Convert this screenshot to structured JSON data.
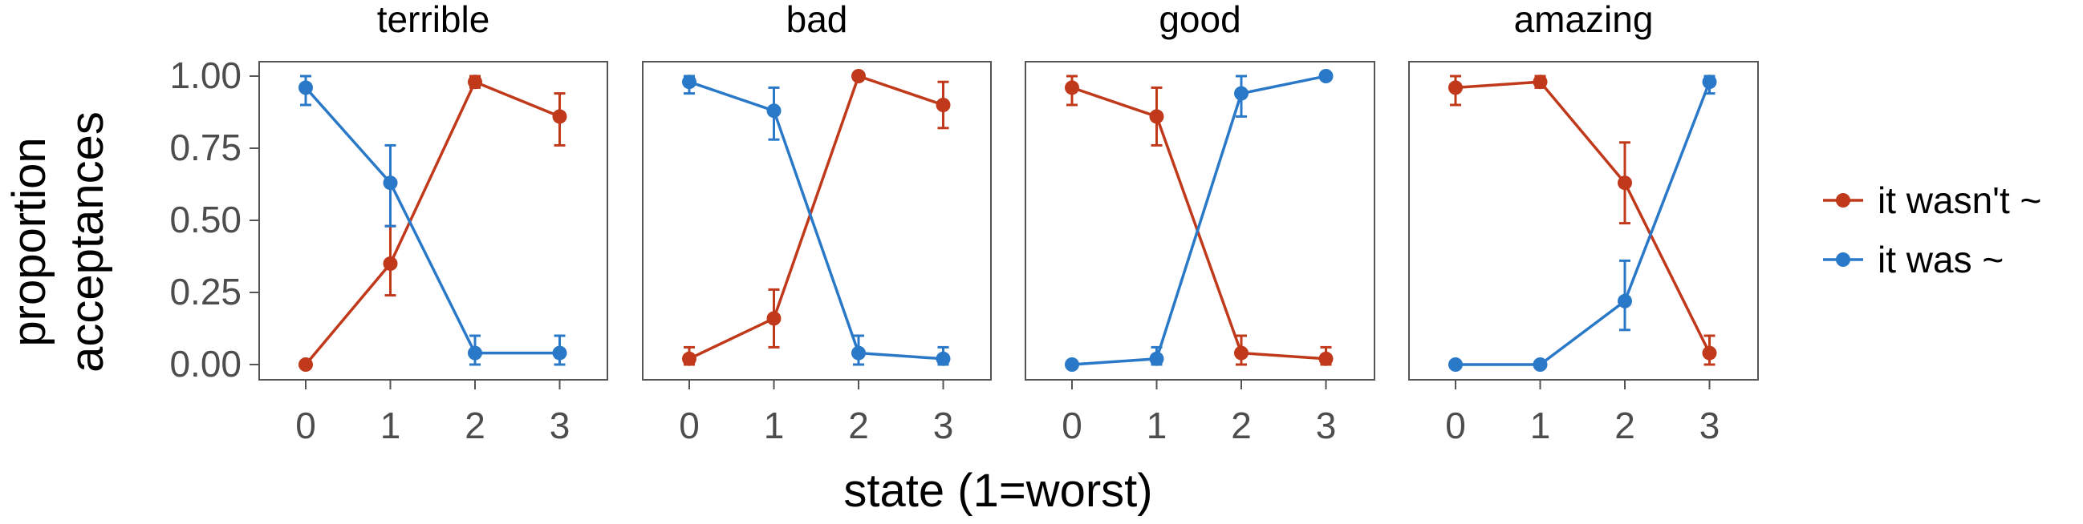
{
  "chart_data": {
    "type": "line",
    "xlabel": "state (1=worst)",
    "ylabel": "proportion acceptances",
    "ylabel_lines": [
      "proportion",
      "acceptances"
    ],
    "x": [
      0,
      1,
      2,
      3
    ],
    "x_tick_labels": [
      "0",
      "1",
      "2",
      "3"
    ],
    "ylim": [
      0,
      1
    ],
    "y_ticks": [
      0,
      0.25,
      0.5,
      0.75,
      1
    ],
    "y_tick_labels": [
      "0.00",
      "0.25",
      "0.50",
      "0.75",
      "1.00"
    ],
    "grid": false,
    "legend_position": "right",
    "colors": {
      "it wasn't ~": "#c0391b",
      "it was ~": "#2a79c8"
    },
    "legend": [
      {
        "name": "it wasn't ~",
        "color": "#c0391b"
      },
      {
        "name": "it was ~",
        "color": "#2a79c8"
      }
    ],
    "panels": [
      {
        "title": "terrible",
        "series": [
          {
            "name": "it wasn't ~",
            "values": [
              0.0,
              0.35,
              0.98,
              0.86
            ],
            "err_low": [
              0.0,
              0.24,
              0.96,
              0.76
            ],
            "err_high": [
              0.0,
              0.48,
              1.0,
              0.94
            ]
          },
          {
            "name": "it was ~",
            "values": [
              0.96,
              0.63,
              0.04,
              0.04
            ],
            "err_low": [
              0.9,
              0.48,
              0.0,
              0.0
            ],
            "err_high": [
              1.0,
              0.76,
              0.1,
              0.1
            ]
          }
        ]
      },
      {
        "title": "bad",
        "series": [
          {
            "name": "it wasn't ~",
            "values": [
              0.02,
              0.16,
              1.0,
              0.9
            ],
            "err_low": [
              0.0,
              0.06,
              1.0,
              0.82
            ],
            "err_high": [
              0.06,
              0.26,
              1.0,
              0.98
            ]
          },
          {
            "name": "it was ~",
            "values": [
              0.98,
              0.88,
              0.04,
              0.02
            ],
            "err_low": [
              0.94,
              0.78,
              0.0,
              0.0
            ],
            "err_high": [
              1.0,
              0.96,
              0.1,
              0.06
            ]
          }
        ]
      },
      {
        "title": "good",
        "series": [
          {
            "name": "it wasn't ~",
            "values": [
              0.96,
              0.86,
              0.04,
              0.02
            ],
            "err_low": [
              0.9,
              0.76,
              0.0,
              0.0
            ],
            "err_high": [
              1.0,
              0.96,
              0.1,
              0.06
            ]
          },
          {
            "name": "it was ~",
            "values": [
              0.0,
              0.02,
              0.94,
              1.0
            ],
            "err_low": [
              0.0,
              0.0,
              0.86,
              1.0
            ],
            "err_high": [
              0.0,
              0.06,
              1.0,
              1.0
            ]
          }
        ]
      },
      {
        "title": "amazing",
        "series": [
          {
            "name": "it wasn't ~",
            "values": [
              0.96,
              0.98,
              0.63,
              0.04
            ],
            "err_low": [
              0.9,
              0.96,
              0.49,
              0.0
            ],
            "err_high": [
              1.0,
              1.0,
              0.77,
              0.1
            ]
          },
          {
            "name": "it was ~",
            "values": [
              0.0,
              0.0,
              0.22,
              0.98
            ],
            "err_low": [
              0.0,
              0.0,
              0.12,
              0.94
            ],
            "err_high": [
              0.0,
              0.0,
              0.36,
              1.0
            ]
          }
        ]
      }
    ]
  }
}
